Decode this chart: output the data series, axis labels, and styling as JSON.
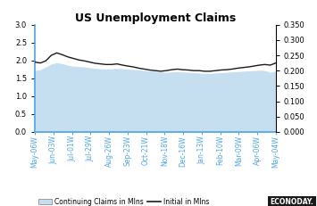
{
  "title": "US Unemployment Claims",
  "x_labels": [
    "May-06W",
    "Jun-03W",
    "Jul-01W",
    "Jul-29W",
    "Aug-26W",
    "Sep-23W",
    "Oct-21W",
    "Nov-18W",
    "Dec-16W",
    "Jan-13W",
    "Feb-10W",
    "Mar-09W",
    "Apr-06W",
    "May-04W"
  ],
  "continuing_claims": [
    1.7,
    1.72,
    1.8,
    1.88,
    1.92,
    1.89,
    1.85,
    1.82,
    1.81,
    1.8,
    1.78,
    1.76,
    1.75,
    1.74,
    1.75,
    1.76,
    1.75,
    1.74,
    1.73,
    1.72,
    1.7,
    1.69,
    1.68,
    1.66,
    1.65,
    1.66,
    1.67,
    1.66,
    1.65,
    1.64,
    1.63,
    1.62,
    1.62,
    1.63,
    1.64,
    1.65,
    1.66,
    1.67,
    1.68,
    1.69,
    1.7,
    1.71,
    1.7,
    1.65,
    1.68
  ],
  "initial_claims": [
    0.228,
    0.225,
    0.232,
    0.25,
    0.258,
    0.252,
    0.245,
    0.24,
    0.235,
    0.232,
    0.228,
    0.224,
    0.222,
    0.22,
    0.22,
    0.222,
    0.218,
    0.215,
    0.212,
    0.208,
    0.205,
    0.202,
    0.2,
    0.198,
    0.2,
    0.203,
    0.205,
    0.203,
    0.202,
    0.2,
    0.2,
    0.198,
    0.198,
    0.2,
    0.202,
    0.203,
    0.205,
    0.208,
    0.21,
    0.212,
    0.215,
    0.218,
    0.22,
    0.218,
    0.225
  ],
  "ylim_left": [
    0.0,
    3.0
  ],
  "ylim_right": [
    0.0,
    0.35
  ],
  "yticks_left": [
    0.0,
    0.5,
    1.0,
    1.5,
    2.0,
    2.5,
    3.0
  ],
  "yticks_right": [
    0.0,
    0.05,
    0.1,
    0.15,
    0.2,
    0.25,
    0.3,
    0.35
  ],
  "fill_color": "#c6dff0",
  "line_color": "#1a1a1a",
  "spine_color": "#4da6e8",
  "background_color": "#ffffff",
  "legend_label_fill": "Continuing Claims in Mlns",
  "legend_label_line": "Initial in Mlns",
  "econoday_bg": "#1a1a1a",
  "econoday_text": "#ffffff",
  "title_fontsize": 9,
  "tick_fontsize": 6,
  "xlabel_fontsize": 5.5
}
